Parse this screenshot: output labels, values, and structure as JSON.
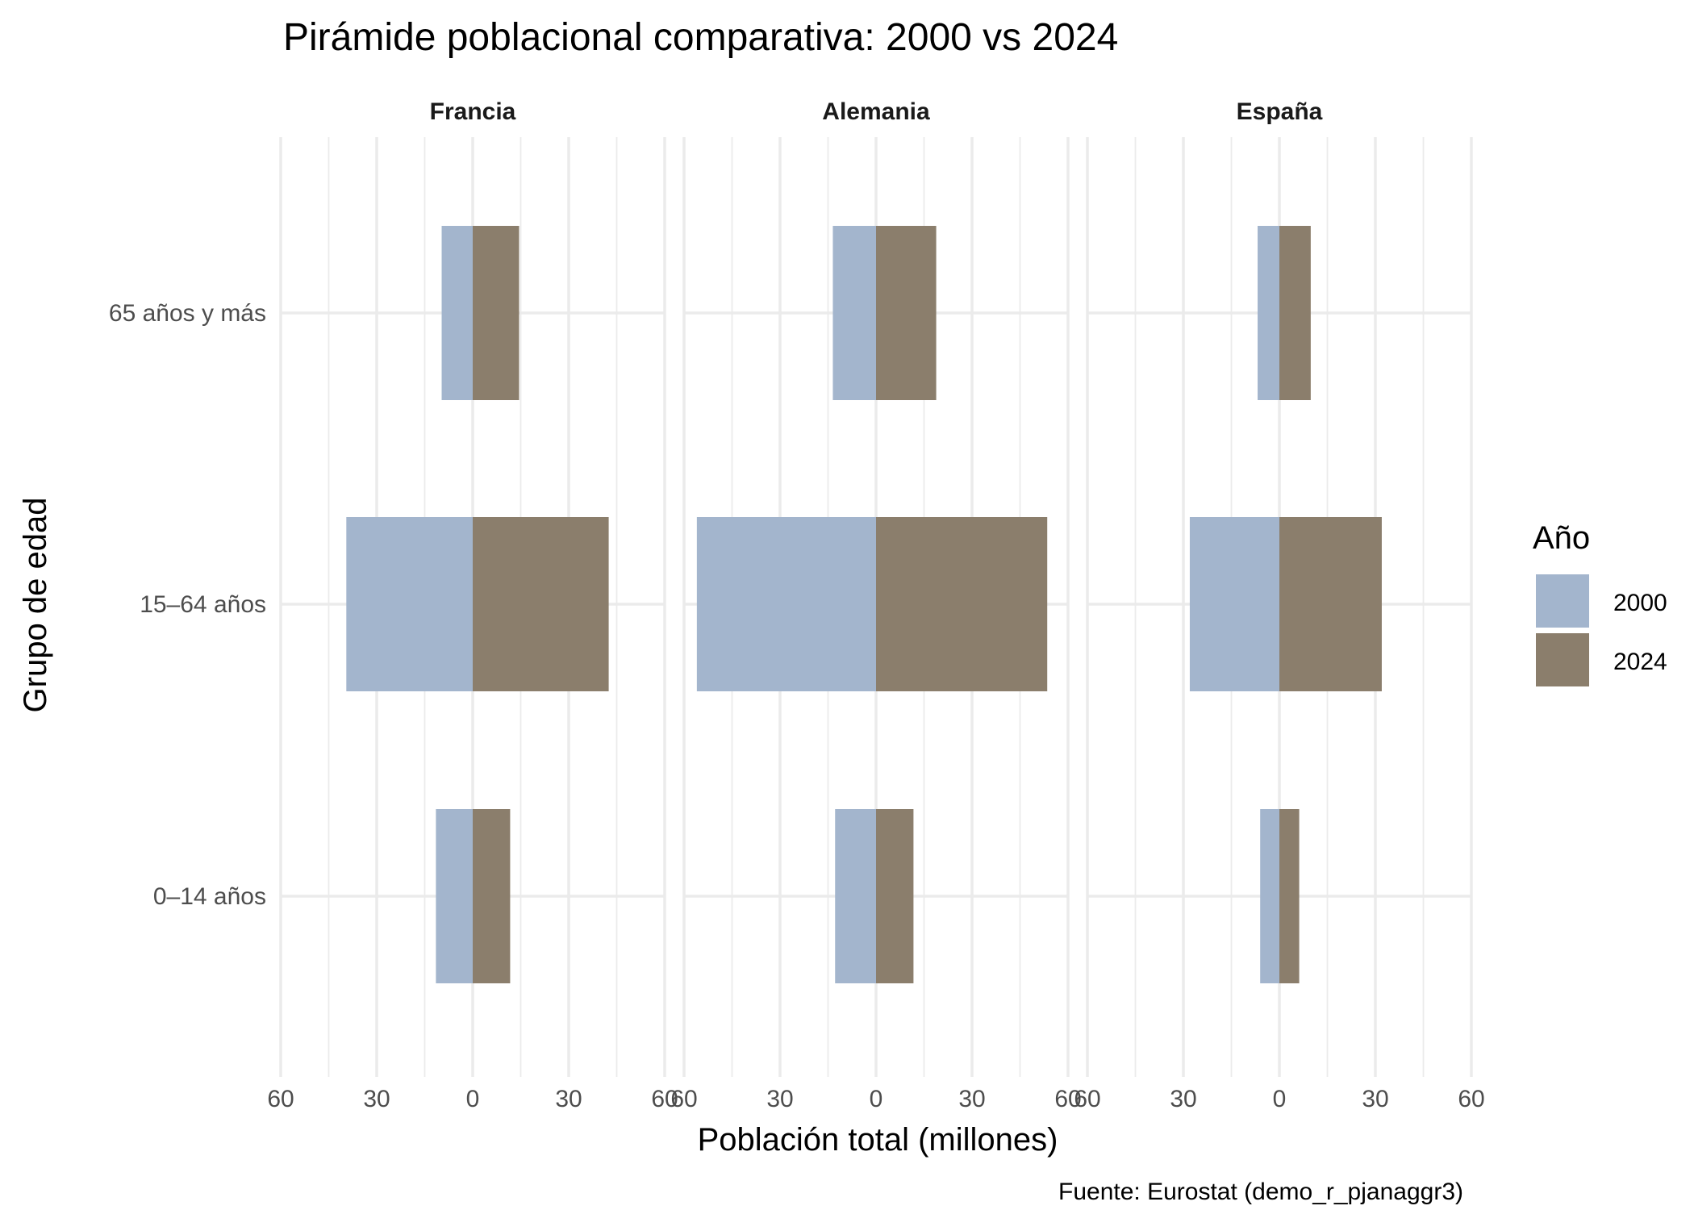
{
  "chart_data": {
    "type": "bar",
    "orientation": "horizontal",
    "layout": "population-pyramid-facets",
    "title": "Pirámide poblacional comparativa: 2000 vs 2024",
    "xlabel": "Población total (millones)",
    "ylabel": "Grupo de edad",
    "caption": "Fuente: Eurostat (demo_r_pjanaggr3)",
    "xlim": [
      -60,
      60
    ],
    "x_ticks": [
      -60,
      -30,
      0,
      30,
      60
    ],
    "x_tick_labels": [
      "60",
      "30",
      "0",
      "30",
      "60"
    ],
    "categories": [
      "65 años y más",
      "15–64 años",
      "0–14 años"
    ],
    "legend": {
      "title": "Año",
      "position": "right",
      "entries": [
        {
          "label": "2000",
          "color": "#a3b5cd"
        },
        {
          "label": "2024",
          "color": "#8b7e6c"
        }
      ]
    },
    "facets": [
      {
        "name": "Francia",
        "series": [
          {
            "name": "2000",
            "side": "left",
            "values": [
              9.7,
              39.5,
              11.5
            ]
          },
          {
            "name": "2024",
            "side": "right",
            "values": [
              14.5,
              42.5,
              11.7
            ]
          }
        ]
      },
      {
        "name": "Alemania",
        "series": [
          {
            "name": "2000",
            "side": "left",
            "values": [
              13.5,
              56.0,
              12.8
            ]
          },
          {
            "name": "2024",
            "side": "right",
            "values": [
              18.8,
              53.5,
              11.7
            ]
          }
        ]
      },
      {
        "name": "España",
        "series": [
          {
            "name": "2000",
            "side": "left",
            "values": [
              6.8,
              28.0,
              6.0
            ]
          },
          {
            "name": "2024",
            "side": "right",
            "values": [
              9.8,
              32.0,
              6.2
            ]
          }
        ]
      }
    ]
  }
}
